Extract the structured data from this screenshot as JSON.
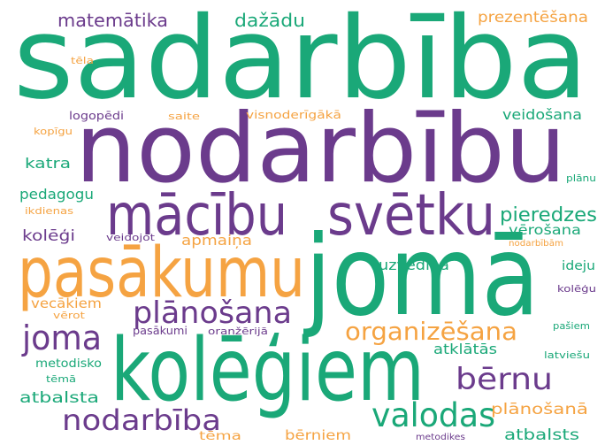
{
  "colors": {
    "green": "#1aa878",
    "purple": "#6b3b8c",
    "orange": "#f5a342"
  },
  "words": [
    {
      "text": "sadarbība",
      "color": "green"
    },
    {
      "text": "nodarbību",
      "color": "purple"
    },
    {
      "text": "jomā",
      "color": "green"
    },
    {
      "text": "kolēģiem",
      "color": "green"
    },
    {
      "text": "pasākumu",
      "color": "orange"
    },
    {
      "text": "mācību",
      "color": "purple"
    },
    {
      "text": "svētku",
      "color": "purple"
    },
    {
      "text": "joma",
      "color": "purple"
    },
    {
      "text": "plānošana",
      "color": "purple"
    },
    {
      "text": "organizēšana",
      "color": "orange"
    },
    {
      "text": "bērnu",
      "color": "purple"
    },
    {
      "text": "valodas",
      "color": "green"
    },
    {
      "text": "nodarbība",
      "color": "purple"
    },
    {
      "text": "pieredzes",
      "color": "green"
    },
    {
      "text": "matemātika",
      "color": "purple"
    },
    {
      "text": "dažādu",
      "color": "green"
    },
    {
      "text": "prezentēšana",
      "color": "orange"
    },
    {
      "text": "tēla",
      "color": "orange"
    },
    {
      "text": "logopēdi",
      "color": "purple"
    },
    {
      "text": "saite",
      "color": "orange"
    },
    {
      "text": "visnoderīgākā",
      "color": "orange"
    },
    {
      "text": "veidošana",
      "color": "green"
    },
    {
      "text": "kopīgu",
      "color": "orange"
    },
    {
      "text": "katra",
      "color": "green"
    },
    {
      "text": "plānu",
      "color": "green"
    },
    {
      "text": "pedagogu",
      "color": "green"
    },
    {
      "text": "ikdienas",
      "color": "orange"
    },
    {
      "text": "kolēģi",
      "color": "purple"
    },
    {
      "text": "veidojot",
      "color": "purple"
    },
    {
      "text": "apmaiņa",
      "color": "orange"
    },
    {
      "text": "vērošana",
      "color": "green"
    },
    {
      "text": "nodarbībām",
      "color": "orange"
    },
    {
      "text": "uzvedība",
      "color": "green"
    },
    {
      "text": "ideju",
      "color": "green"
    },
    {
      "text": "kolēģu",
      "color": "purple"
    },
    {
      "text": "vecākiem",
      "color": "orange"
    },
    {
      "text": "vērot",
      "color": "orange"
    },
    {
      "text": "pasākumi",
      "color": "purple"
    },
    {
      "text": "oranžērijā",
      "color": "purple"
    },
    {
      "text": "pašiem",
      "color": "green"
    },
    {
      "text": "atklātās",
      "color": "green"
    },
    {
      "text": "latviešu",
      "color": "green"
    },
    {
      "text": "metodisko",
      "color": "green"
    },
    {
      "text": "tēmā",
      "color": "green"
    },
    {
      "text": "atbalsta",
      "color": "green"
    },
    {
      "text": "plānošanā",
      "color": "orange"
    },
    {
      "text": "tēma",
      "color": "orange"
    },
    {
      "text": "bērniem",
      "color": "orange"
    },
    {
      "text": "metodikes",
      "color": "purple"
    },
    {
      "text": "atbalsts",
      "color": "green"
    }
  ]
}
